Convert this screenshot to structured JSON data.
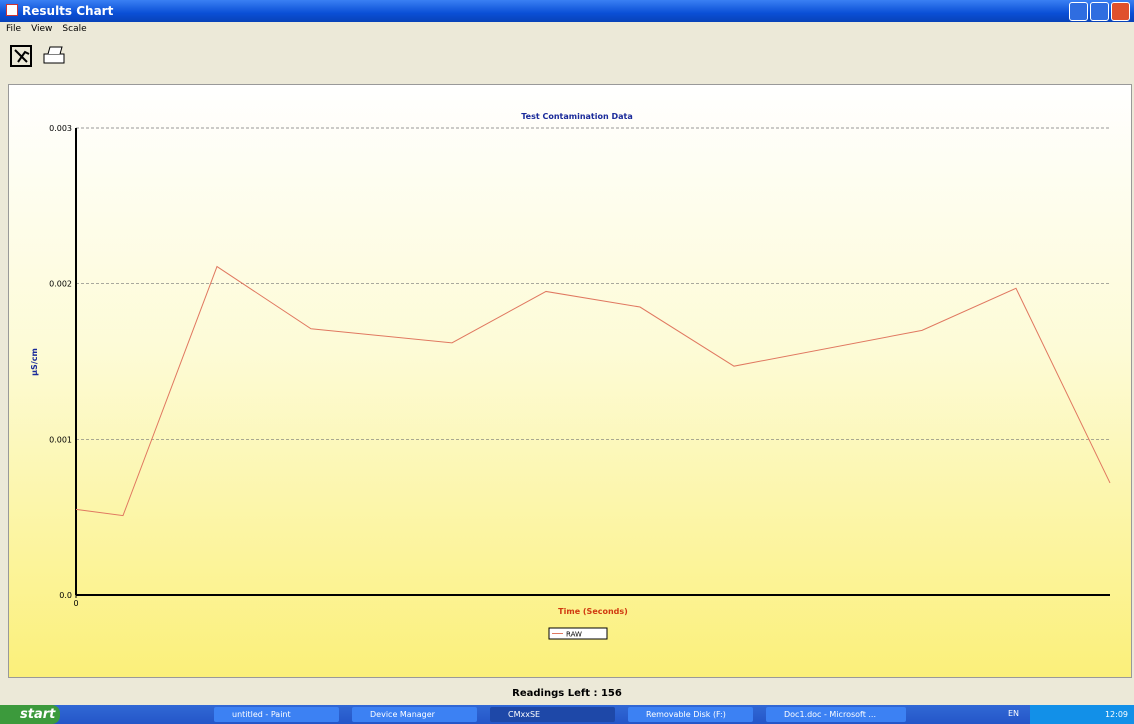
{
  "window": {
    "title": "Results Chart",
    "menu": [
      "File",
      "View",
      "Scale"
    ]
  },
  "chart_data": {
    "type": "line",
    "title": "Test Contamination Data",
    "y_label": "µS/cm",
    "x_label": "Time (Seconds)",
    "x": [
      0,
      1,
      3,
      5,
      8,
      10,
      12,
      14,
      18,
      20,
      22
    ],
    "series": [
      {
        "name": "RAW",
        "color": "#e07860",
        "values": [
          0.00055,
          0.00051,
          0.00211,
          0.00171,
          0.00162,
          0.00195,
          0.00185,
          0.00147,
          0.0017,
          0.00197,
          0.00072
        ]
      }
    ],
    "xlim": [
      0,
      22
    ],
    "xticks": [
      0
    ],
    "ylim": [
      0,
      0.003
    ],
    "yticks": [
      {
        "value": 0,
        "label": "0.0"
      },
      0.001,
      0.002,
      0.003
    ],
    "grid": true
  },
  "status": "Readings Left : 156",
  "taskbar": {
    "start": "start",
    "items": [
      "untitled - Paint",
      "Device Manager",
      "CMxxSE",
      "Removable Disk (F:)",
      "Doc1.doc - Microsoft ..."
    ],
    "language": "EN",
    "clock": "12:09"
  }
}
